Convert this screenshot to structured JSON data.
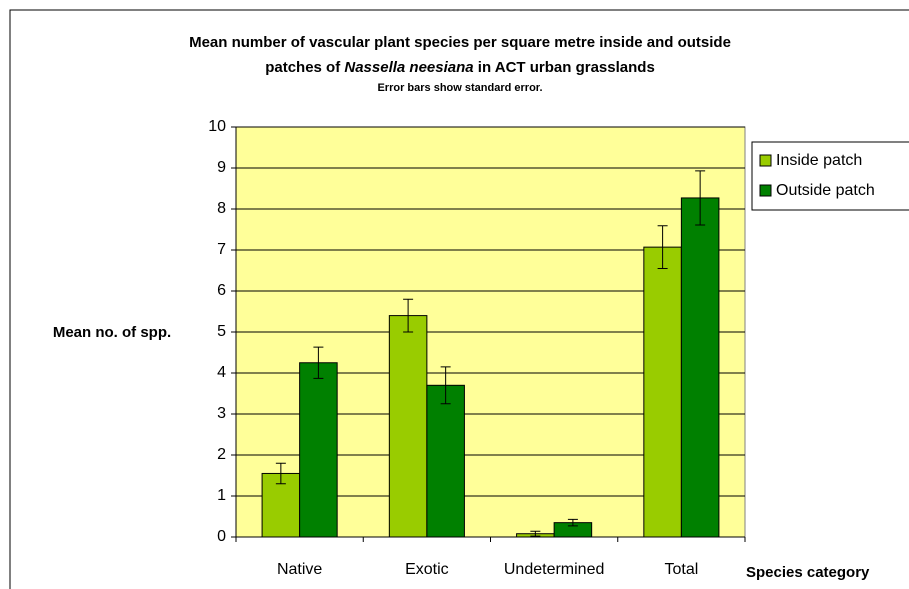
{
  "chart_data": {
    "type": "bar",
    "title": [
      "Mean number of vascular plant species per square metre inside and outside",
      "patches of ",
      "Nassella neesiana",
      " in ACT urban grasslands"
    ],
    "subtitle": "Error bars show standard error.",
    "y_label": "Mean no. of spp.",
    "x_label": "Species category",
    "categories": [
      "Native",
      "Exotic",
      "Undetermined",
      "Total"
    ],
    "series": [
      {
        "name": "Inside patch",
        "color": "#99cc00",
        "values": [
          1.55,
          5.4,
          0.08,
          7.07
        ],
        "errors": [
          0.25,
          0.4,
          0.06,
          0.52
        ]
      },
      {
        "name": "Outside patch",
        "color": "#008000",
        "values": [
          4.25,
          3.7,
          0.35,
          8.27
        ],
        "errors": [
          0.38,
          0.45,
          0.08,
          0.66
        ]
      }
    ],
    "ylim": [
      0,
      10
    ],
    "yticks": [
      0,
      1,
      2,
      3,
      4,
      5,
      6,
      7,
      8,
      9,
      10
    ],
    "grid": true,
    "legend": "right",
    "plot_background": "#ffff99"
  }
}
